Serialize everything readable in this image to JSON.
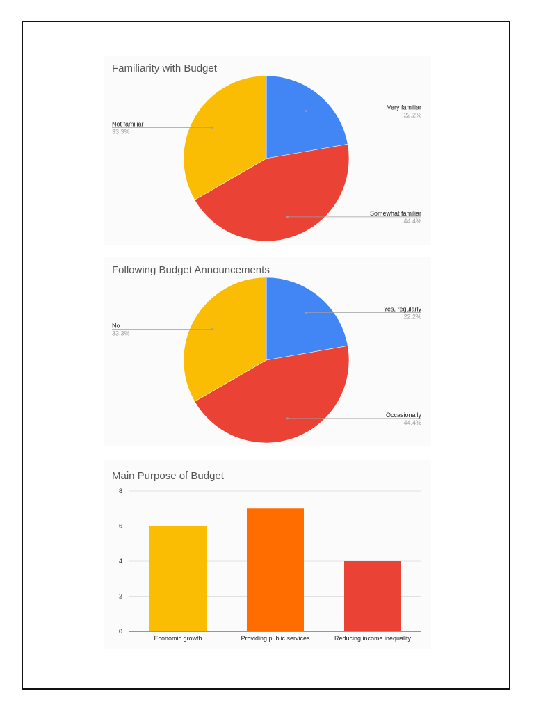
{
  "chart_data": [
    {
      "type": "pie",
      "title": "Familiarity with Budget",
      "slices": [
        {
          "label": "Very familiar",
          "value": 22.2,
          "display": "22.2%",
          "color": "#4285f4"
        },
        {
          "label": "Somewhat familiar",
          "value": 44.4,
          "display": "44.4%",
          "color": "#ea4335"
        },
        {
          "label": "Not familiar",
          "value": 33.3,
          "display": "33.3%",
          "color": "#fbbc04"
        }
      ]
    },
    {
      "type": "pie",
      "title": "Following Budget Announcements",
      "slices": [
        {
          "label": "Yes, regularly",
          "value": 22.2,
          "display": "22.2%",
          "color": "#4285f4"
        },
        {
          "label": "Occasionally",
          "value": 44.4,
          "display": "44.4%",
          "color": "#ea4335"
        },
        {
          "label": "No",
          "value": 33.3,
          "display": "33.3%",
          "color": "#fbbc04"
        }
      ]
    },
    {
      "type": "bar",
      "title": "Main Purpose of Budget",
      "categories": [
        "Economic growth",
        "Providing public services",
        "Reducing income inequality"
      ],
      "values": [
        6,
        7,
        4
      ],
      "colors": [
        "#fbbc04",
        "#ff6d01",
        "#ea4335"
      ],
      "ylim": [
        0,
        8
      ],
      "yticks": [
        0,
        2,
        4,
        6,
        8
      ],
      "grid": true
    }
  ]
}
